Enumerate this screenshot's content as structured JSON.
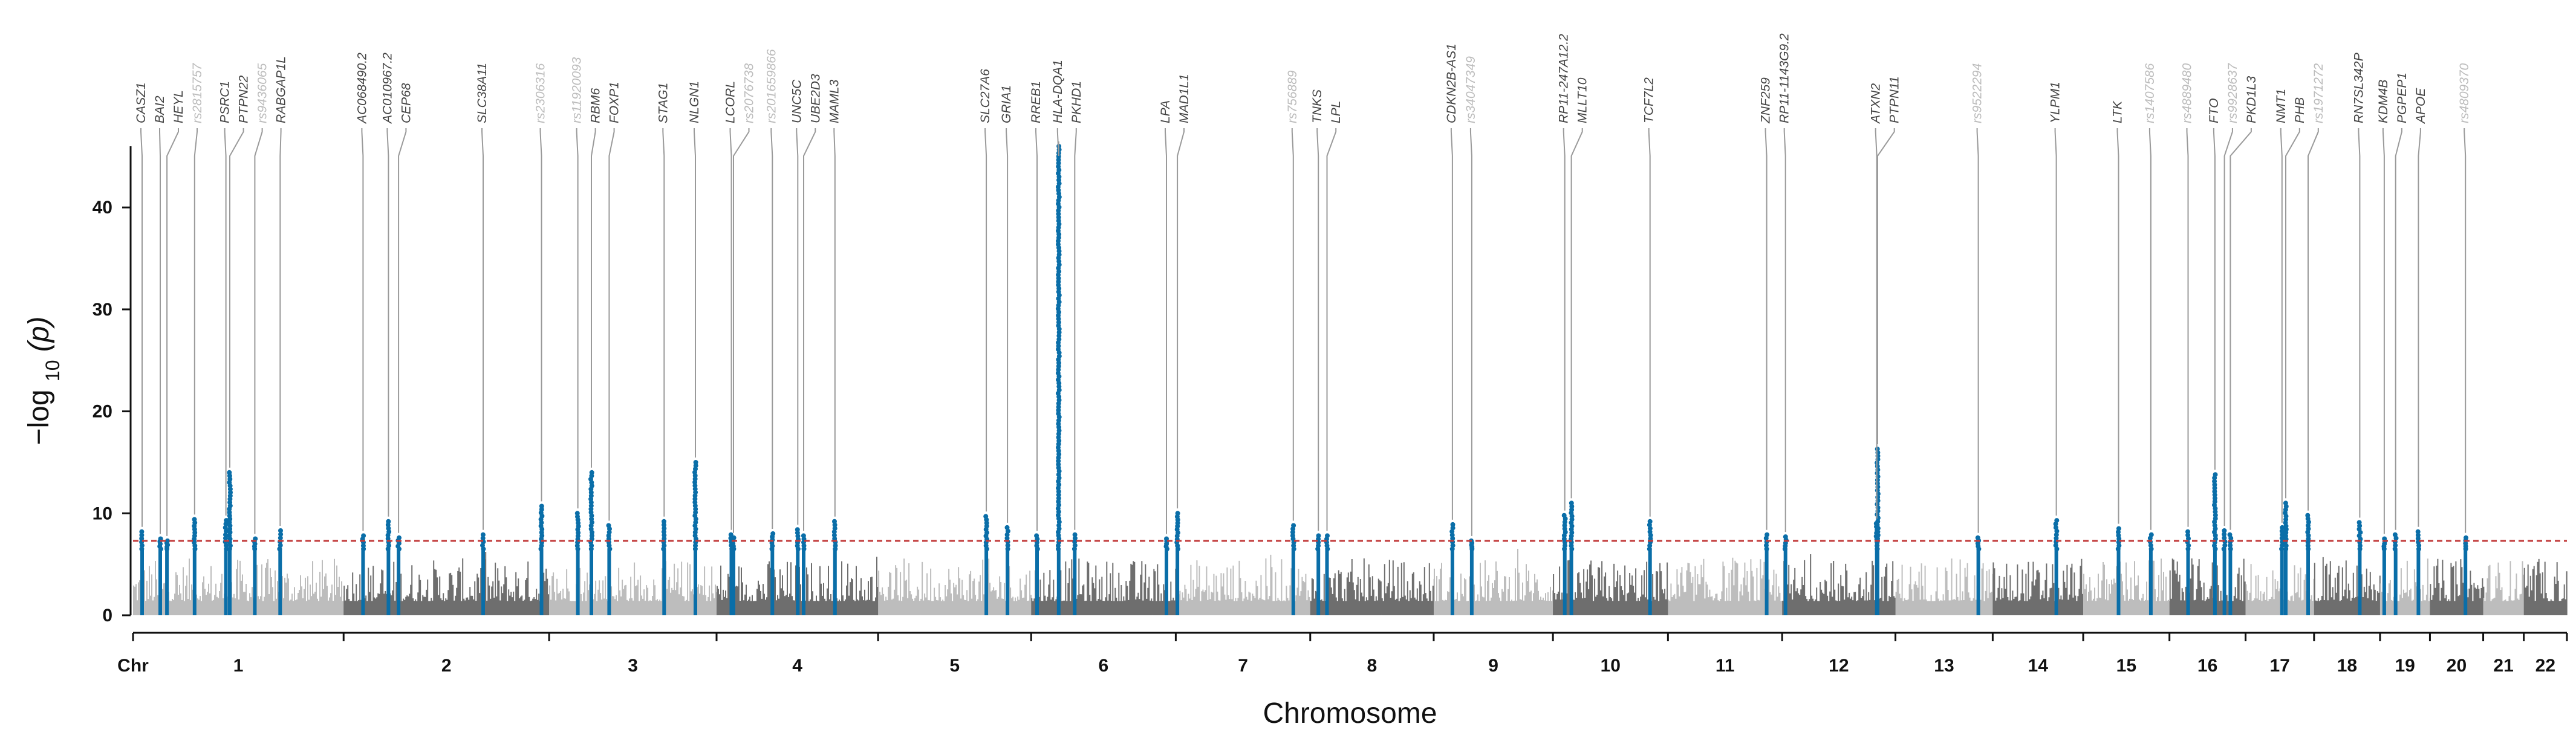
{
  "chart_data": {
    "type": "scatter",
    "title": "",
    "xlabel": "Chromosome",
    "ylabel": "−log10(p)",
    "ylabel_parts": {
      "prefix": "−log",
      "sub": "10",
      "suffix": "(p)"
    },
    "ylim": [
      0,
      46
    ],
    "yticks": [
      0,
      10,
      20,
      30,
      40
    ],
    "significance_threshold": 7.3,
    "threshold_color": "#c23b3b",
    "colors": {
      "light": "#bdbdbd",
      "dark": "#6e6e6e",
      "hit": "#0a6ea8",
      "label_light": "#bcbcbc",
      "label_dark": "#444444",
      "leader": "#9a9a9a"
    },
    "x_axis_chr_label": "Chr",
    "chromosomes": [
      {
        "chr": "1",
        "length": 249
      },
      {
        "chr": "2",
        "length": 243
      },
      {
        "chr": "3",
        "length": 198
      },
      {
        "chr": "4",
        "length": 191
      },
      {
        "chr": "5",
        "length": 181
      },
      {
        "chr": "6",
        "length": 171
      },
      {
        "chr": "7",
        "length": 159
      },
      {
        "chr": "8",
        "length": 146
      },
      {
        "chr": "9",
        "length": 141
      },
      {
        "chr": "10",
        "length": 136
      },
      {
        "chr": "11",
        "length": 135
      },
      {
        "chr": "12",
        "length": 134
      },
      {
        "chr": "13",
        "length": 115
      },
      {
        "chr": "14",
        "length": 107
      },
      {
        "chr": "15",
        "length": 102
      },
      {
        "chr": "16",
        "length": 90
      },
      {
        "chr": "17",
        "length": 81
      },
      {
        "chr": "18",
        "length": 78
      },
      {
        "chr": "19",
        "length": 59
      },
      {
        "chr": "20",
        "length": 63
      },
      {
        "chr": "21",
        "length": 48
      },
      {
        "chr": "22",
        "length": 51
      }
    ],
    "loci": [
      {
        "label": "CASZ1",
        "chr": "1",
        "pos": 10.7,
        "p": 8.2,
        "faded": false
      },
      {
        "label": "BAI2",
        "chr": "1",
        "pos": 32.2,
        "p": 7.5,
        "faded": false
      },
      {
        "label": "HEYL",
        "chr": "1",
        "pos": 40.1,
        "p": 7.3,
        "faded": false
      },
      {
        "label": "rs2815757",
        "chr": "1",
        "pos": 72.8,
        "p": 9.4,
        "faded": true
      },
      {
        "label": "PSRC1",
        "chr": "1",
        "pos": 109.8,
        "p": 9.3,
        "faded": false
      },
      {
        "label": "PTPN22",
        "chr": "1",
        "pos": 114.4,
        "p": 14.0,
        "faded": false
      },
      {
        "label": "rs9436065",
        "chr": "1",
        "pos": 144.0,
        "p": 7.5,
        "faded": true
      },
      {
        "label": "RABGAP1L",
        "chr": "1",
        "pos": 174.0,
        "p": 8.3,
        "faded": false
      },
      {
        "label": "AC068490.2",
        "chr": "2",
        "pos": 23.0,
        "p": 7.8,
        "faded": false
      },
      {
        "label": "AC010967.2",
        "chr": "2",
        "pos": 53.0,
        "p": 9.2,
        "faded": false
      },
      {
        "label": "CEP68",
        "chr": "2",
        "pos": 65.0,
        "p": 7.6,
        "faded": false
      },
      {
        "label": "SLC38A11",
        "chr": "2",
        "pos": 165.0,
        "p": 7.9,
        "faded": false
      },
      {
        "label": "rs2306316",
        "chr": "2",
        "pos": 234.0,
        "p": 10.7,
        "faded": true
      },
      {
        "label": "rs11920093",
        "chr": "3",
        "pos": 34.0,
        "p": 10.0,
        "faded": true
      },
      {
        "label": "RBM6",
        "chr": "3",
        "pos": 50.0,
        "p": 14.0,
        "faded": false
      },
      {
        "label": "FOXP1",
        "chr": "3",
        "pos": 71.0,
        "p": 8.8,
        "faded": false
      },
      {
        "label": "STAG1",
        "chr": "3",
        "pos": 136.0,
        "p": 9.2,
        "faded": false
      },
      {
        "label": "NLGN1",
        "chr": "3",
        "pos": 173.0,
        "p": 15.0,
        "faded": false
      },
      {
        "label": "LCORL",
        "chr": "4",
        "pos": 17.5,
        "p": 7.9,
        "faded": false
      },
      {
        "label": "rs2076738",
        "chr": "4",
        "pos": 20.0,
        "p": 7.6,
        "faded": true
      },
      {
        "label": "rs201659866",
        "chr": "4",
        "pos": 66.0,
        "p": 8.0,
        "faded": true
      },
      {
        "label": "UNC5C",
        "chr": "4",
        "pos": 96.0,
        "p": 8.4,
        "faded": false
      },
      {
        "label": "UBE2D3",
        "chr": "4",
        "pos": 103.0,
        "p": 7.8,
        "faded": false
      },
      {
        "label": "MAML3",
        "chr": "4",
        "pos": 140.0,
        "p": 9.2,
        "faded": false
      },
      {
        "label": "SLC27A6",
        "chr": "5",
        "pos": 128.0,
        "p": 9.7,
        "faded": false
      },
      {
        "label": "GRIA1",
        "chr": "5",
        "pos": 153.0,
        "p": 8.6,
        "faded": false
      },
      {
        "label": "RREB1",
        "chr": "6",
        "pos": 7.0,
        "p": 7.8,
        "faded": false
      },
      {
        "label": "HLA-DQA1",
        "chr": "6",
        "pos": 32.6,
        "p": 46.0,
        "faded": false
      },
      {
        "label": "PKHD1",
        "chr": "6",
        "pos": 51.5,
        "p": 7.9,
        "faded": false
      },
      {
        "label": "LPA",
        "chr": "6",
        "pos": 160.0,
        "p": 7.5,
        "faded": false
      },
      {
        "label": "MAD1L1",
        "chr": "7",
        "pos": 1.9,
        "p": 10.0,
        "faded": false
      },
      {
        "label": "rs756889",
        "chr": "7",
        "pos": 139.0,
        "p": 8.8,
        "faded": true
      },
      {
        "label": "TNKS",
        "chr": "8",
        "pos": 9.6,
        "p": 7.8,
        "faded": false
      },
      {
        "label": "LPL",
        "chr": "8",
        "pos": 19.8,
        "p": 7.8,
        "faded": false
      },
      {
        "label": "CDKN2B-AS1",
        "chr": "9",
        "pos": 22.1,
        "p": 8.9,
        "faded": false
      },
      {
        "label": "rs34047349",
        "chr": "9",
        "pos": 45.0,
        "p": 7.3,
        "faded": true
      },
      {
        "label": "RP11-247A12.2",
        "chr": "10",
        "pos": 14.0,
        "p": 9.8,
        "faded": false
      },
      {
        "label": "MLLT10",
        "chr": "10",
        "pos": 21.8,
        "p": 11.0,
        "faded": false
      },
      {
        "label": "TCF7L2",
        "chr": "10",
        "pos": 114.8,
        "p": 9.2,
        "faded": false
      },
      {
        "label": "ZNF259",
        "chr": "11",
        "pos": 116.7,
        "p": 7.9,
        "faded": false
      },
      {
        "label": "RP11-1143G9.2",
        "chr": "12",
        "pos": 4.0,
        "p": 7.7,
        "faded": false
      },
      {
        "label": "PTPN11",
        "chr": "12",
        "pos": 112.9,
        "p": 16.3,
        "faded": false
      },
      {
        "label": "ATXN2",
        "chr": "12",
        "pos": 111.9,
        "p": 9.0,
        "faded": false
      },
      {
        "label": "rs9522294",
        "chr": "13",
        "pos": 98.0,
        "p": 7.6,
        "faded": true
      },
      {
        "label": "YLPM1",
        "chr": "14",
        "pos": 75.2,
        "p": 9.3,
        "faded": false
      },
      {
        "label": "LTK",
        "chr": "15",
        "pos": 41.8,
        "p": 8.5,
        "faded": false
      },
      {
        "label": "rs1407586",
        "chr": "15",
        "pos": 80.0,
        "p": 7.9,
        "faded": true
      },
      {
        "label": "rs4889480",
        "chr": "16",
        "pos": 22.0,
        "p": 8.2,
        "faded": true
      },
      {
        "label": "FTO",
        "chr": "16",
        "pos": 53.8,
        "p": 13.8,
        "faded": false
      },
      {
        "label": "rs9928637",
        "chr": "16",
        "pos": 65.0,
        "p": 8.3,
        "faded": true
      },
      {
        "label": "PKD1L3",
        "chr": "16",
        "pos": 72.0,
        "p": 7.9,
        "faded": false
      },
      {
        "label": "NMT1",
        "chr": "17",
        "pos": 43.1,
        "p": 8.6,
        "faded": false
      },
      {
        "label": "PHB",
        "chr": "17",
        "pos": 47.5,
        "p": 11.0,
        "faded": false
      },
      {
        "label": "rs1971272",
        "chr": "17",
        "pos": 74.0,
        "p": 9.8,
        "faded": true
      },
      {
        "label": "RN7SL342P",
        "chr": "18",
        "pos": 54.0,
        "p": 9.1,
        "faded": false
      },
      {
        "label": "KDM4B",
        "chr": "19",
        "pos": 5.0,
        "p": 7.5,
        "faded": false
      },
      {
        "label": "PGPEP1",
        "chr": "19",
        "pos": 18.4,
        "p": 7.9,
        "faded": false
      },
      {
        "label": "APOE",
        "chr": "19",
        "pos": 45.4,
        "p": 8.2,
        "faded": false
      },
      {
        "label": "rs4809370",
        "chr": "20",
        "pos": 42.0,
        "p": 7.6,
        "faded": true
      }
    ]
  }
}
